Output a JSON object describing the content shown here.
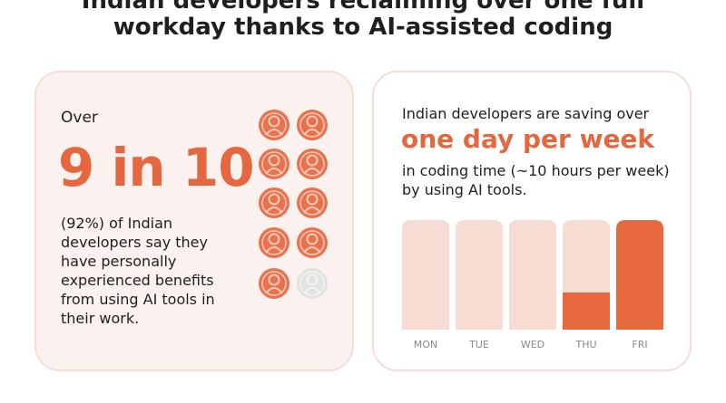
{
  "header": {
    "title_lines": [
      "Indian developers reclaiming over one full",
      "workday thanks to AI-assisted coding"
    ]
  },
  "left_card": {
    "intro": "Over",
    "stat": "9 in 10",
    "body": "(92%) of Indian developers say they have personally experienced benefits from using AI tools in their work."
  },
  "right_card": {
    "intro": "Indian developers are saving over",
    "highlight": "one day per week",
    "body": "in coding time (~10 hours per week) by using AI tools.",
    "days": [
      "MON",
      "TUE",
      "WED",
      "THU",
      "FRI"
    ]
  }
}
